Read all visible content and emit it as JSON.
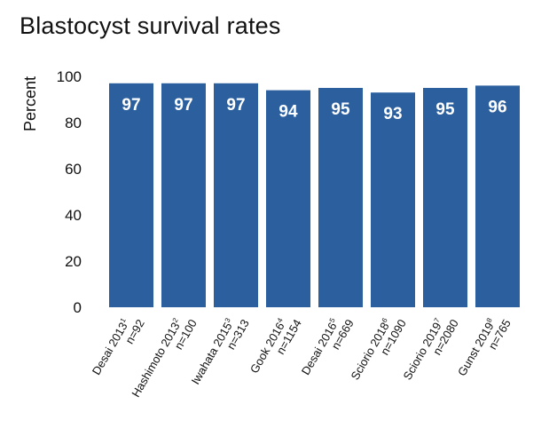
{
  "chart_data": {
    "type": "bar",
    "title": "Blastocyst survival rates",
    "xlabel": "",
    "ylabel": "Percent",
    "ylim": [
      0,
      100
    ],
    "yticks": [
      0,
      20,
      40,
      60,
      80,
      100
    ],
    "grid": false,
    "bar_color": "#2b5f9e",
    "categories": [
      {
        "name": "Desai 2013",
        "ref": "1",
        "n": "n=92"
      },
      {
        "name": "Hashimoto 2013",
        "ref": "2",
        "n": "n=100"
      },
      {
        "name": "Iwahata  2015",
        "ref": "3",
        "n": "n=313"
      },
      {
        "name": "Gook 2016",
        "ref": "4",
        "n": "n=1154"
      },
      {
        "name": "Desai 2016",
        "ref": "5",
        "n": "n=669"
      },
      {
        "name": "Sciorio 2018",
        "ref": "6",
        "n": "n=1090"
      },
      {
        "name": "Sciorio 2019",
        "ref": "7",
        "n": "n=2080"
      },
      {
        "name": "Gunst 2019",
        "ref": "8",
        "n": "n=765"
      }
    ],
    "values": [
      97,
      97,
      97,
      94,
      95,
      93,
      95,
      96
    ],
    "value_labels": [
      "97",
      "97",
      "97",
      "94",
      "95",
      "93",
      "95",
      "96"
    ]
  }
}
